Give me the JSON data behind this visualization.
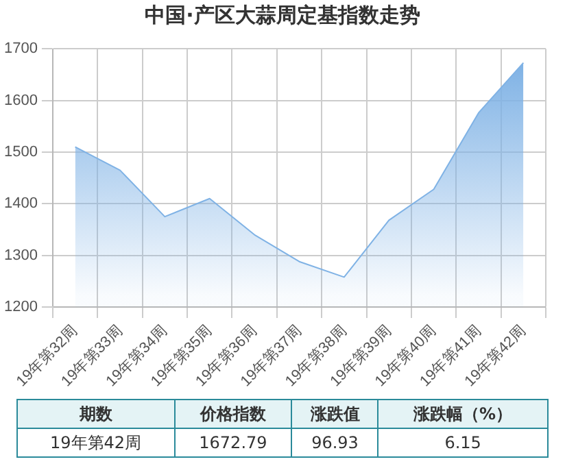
{
  "chart_data": {
    "type": "area",
    "title": "中国·产区大蒜周定基指数走势",
    "categories": [
      "19年第32周",
      "19年第33周",
      "19年第34周",
      "19年第35周",
      "19年第36周",
      "19年第37周",
      "19年第38周",
      "19年第39周",
      "19年第40周",
      "19年第41周",
      "19年第42周"
    ],
    "values": [
      1510,
      1465,
      1375,
      1410,
      1340,
      1288,
      1258,
      1368,
      1428,
      1576,
      1673
    ],
    "color": "#7fb2e5",
    "ylim": [
      1200,
      1700
    ],
    "yticks": [
      1200,
      1300,
      1400,
      1500,
      1600,
      1700
    ],
    "grid": true,
    "legend": false,
    "annotations": [
      "期数",
      "价格指数",
      "涨跌值",
      "涨跌幅（%）",
      "19年第42周",
      "1672.79",
      "96.93",
      "6.15"
    ]
  }
}
